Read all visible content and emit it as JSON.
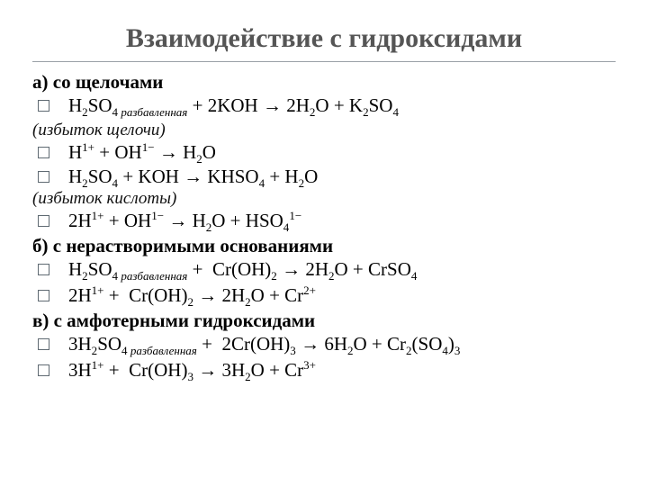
{
  "colors": {
    "background": "#ffffff",
    "title": "#555555",
    "text": "#000000",
    "rule": "#9aa0a6",
    "bullet_border": "#5f6a72"
  },
  "fonts": {
    "title_family": "Georgia",
    "title_size_pt": 22,
    "body_family": "Times New Roman",
    "body_size_pt": 16,
    "note_italic": true
  },
  "title": "Взаимодействие с гидроксидами",
  "section_a": {
    "heading": "а) со щелочами",
    "eq1": "H₂SO₄ разбавленная + 2KOH → 2H₂O + K₂SO₄",
    "note1": "(избыток щелочи)",
    "eq2": "H¹⁺ + OH¹⁻ → H₂O",
    "eq3": "H₂SO₄ + KOH → KHSO₄ + H₂O",
    "note2": "(избыток кислоты)",
    "eq4": "2H¹⁺ + OH¹⁻ → H₂O + HSO₄¹⁻"
  },
  "section_b": {
    "heading": "б) с нерастворимыми основаниями",
    "eq1": "H₂SO₄ разбавленная + Cr(OH)₂ → 2H₂O + CrSO₄",
    "eq2": "2H¹⁺ + Cr(OH)₂ → 2H₂O + Cr²⁺"
  },
  "section_c": {
    "heading": "в) с амфотерными гидроксидами",
    "eq1": "3H₂SO₄ разбавленная + 2Cr(OH)₃ → 6H₂O + Cr₂(SO₄)₃",
    "eq2": "3H¹⁺ + Cr(OH)₃ → 3H₂O + Cr³⁺"
  }
}
